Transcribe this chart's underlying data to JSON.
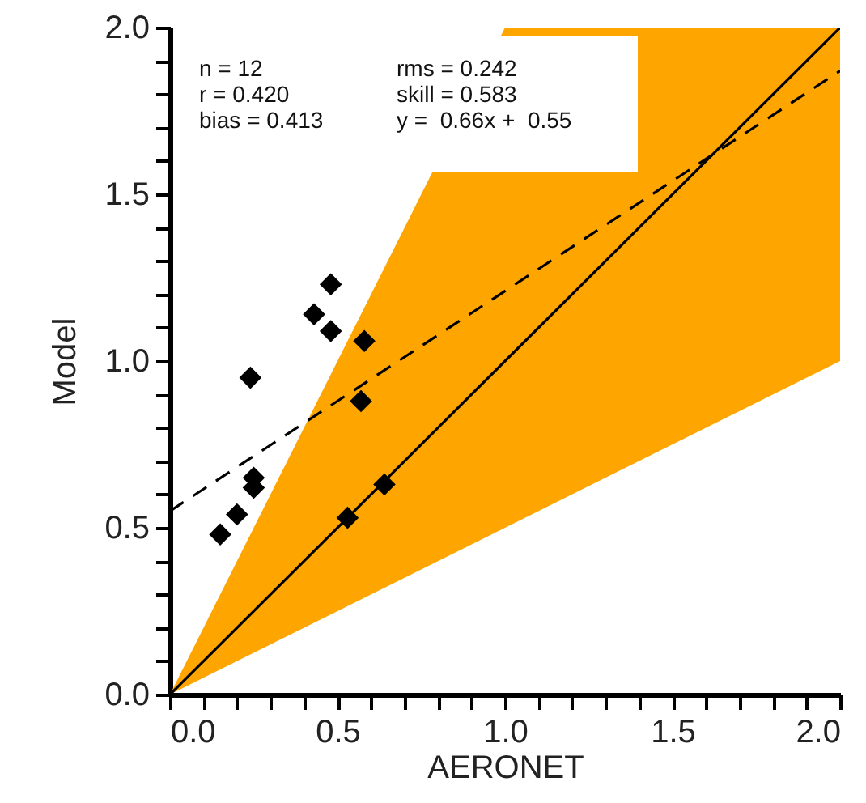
{
  "chart_data": {
    "type": "scatter",
    "xlabel": "AERONET",
    "ylabel": "Model",
    "xlim": [
      0,
      2
    ],
    "ylim": [
      0,
      2
    ],
    "xticks": [
      {
        "value": 0,
        "label": "0.0"
      },
      {
        "value": 0.1,
        "label": null
      },
      {
        "value": 0.2,
        "label": null
      },
      {
        "value": 0.3,
        "label": null
      },
      {
        "value": 0.4,
        "label": null
      },
      {
        "value": 0.5,
        "label": "0.5"
      },
      {
        "value": 0.6,
        "label": null
      },
      {
        "value": 0.7,
        "label": null
      },
      {
        "value": 0.8,
        "label": null
      },
      {
        "value": 0.9,
        "label": null
      },
      {
        "value": 1,
        "label": "1.0"
      },
      {
        "value": 1.1,
        "label": null
      },
      {
        "value": 1.2,
        "label": null
      },
      {
        "value": 1.3,
        "label": null
      },
      {
        "value": 1.4,
        "label": null
      },
      {
        "value": 1.5,
        "label": "1.5"
      },
      {
        "value": 1.6,
        "label": null
      },
      {
        "value": 1.7,
        "label": null
      },
      {
        "value": 1.8,
        "label": null
      },
      {
        "value": 1.9,
        "label": null
      },
      {
        "value": 2,
        "label": "2.0"
      }
    ],
    "yticks": [
      {
        "value": 0,
        "label": "0.0"
      },
      {
        "value": 0.1,
        "label": null
      },
      {
        "value": 0.2,
        "label": null
      },
      {
        "value": 0.3,
        "label": null
      },
      {
        "value": 0.4,
        "label": null
      },
      {
        "value": 0.5,
        "label": "0.5"
      },
      {
        "value": 0.6,
        "label": null
      },
      {
        "value": 0.7,
        "label": null
      },
      {
        "value": 0.8,
        "label": null
      },
      {
        "value": 0.9,
        "label": null
      },
      {
        "value": 1,
        "label": "1.0"
      },
      {
        "value": 1.1,
        "label": null
      },
      {
        "value": 1.2,
        "label": null
      },
      {
        "value": 1.3,
        "label": null
      },
      {
        "value": 1.4,
        "label": null
      },
      {
        "value": 1.5,
        "label": "1.5"
      },
      {
        "value": 1.6,
        "label": null
      },
      {
        "value": 1.7,
        "label": null
      },
      {
        "value": 1.8,
        "label": null
      },
      {
        "value": 1.9,
        "label": null
      },
      {
        "value": 2,
        "label": "2.0"
      }
    ],
    "annotations": [
      "n = 12",
      "r = 0.420",
      "bias = 0.413",
      "rms = 0.242",
      "skill = 0.583",
      "y =  0.66x +  0.55"
    ],
    "series": [
      {
        "type": "line",
        "color": "#000000",
        "line_style": "solid",
        "x": [
          0,
          1,
          2
        ],
        "values": [
          0,
          1,
          2
        ],
        "lower": [
          0,
          0.5,
          1
        ],
        "upper": [
          0,
          2,
          2
        ]
      },
      {
        "type": "line",
        "color": "#000000",
        "line_style": "dashed",
        "x": [
          0,
          2
        ],
        "values": [
          0.55,
          1.87
        ]
      },
      {
        "marker": "diamond",
        "color": "#000000",
        "x": [
          0.15,
          0.2,
          0.24,
          0.25,
          0.25,
          0.43,
          0.48,
          0.48,
          0.58,
          0.57,
          0.53,
          0.64
        ],
        "values": [
          0.48,
          0.54,
          0.95,
          0.65,
          0.62,
          1.14,
          1.23,
          1.09,
          1.06,
          0.88,
          0.53,
          0.63
        ]
      }
    ]
  }
}
